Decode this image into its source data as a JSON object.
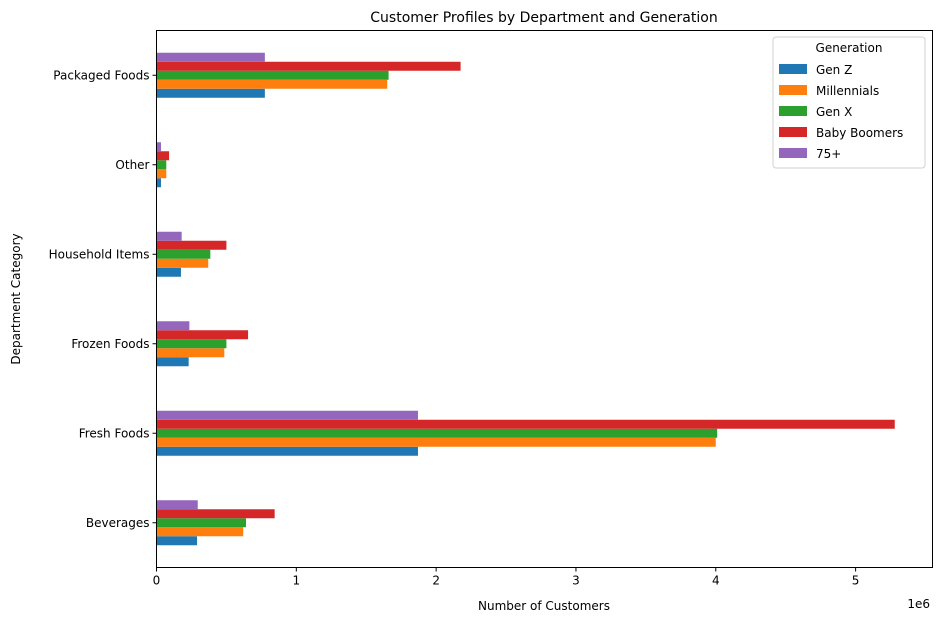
{
  "chart_data": {
    "type": "bar",
    "orientation": "horizontal",
    "title": "Customer Profiles by Department and Generation",
    "xlabel": "Number of Customers",
    "ylabel": "Department Category",
    "x_scale_label": "1e6",
    "xlim": [
      0,
      5550000
    ],
    "xticks": [
      0,
      1000000,
      2000000,
      3000000,
      4000000,
      5000000
    ],
    "xtick_labels": [
      "0",
      "1",
      "2",
      "3",
      "4",
      "5"
    ],
    "categories": [
      "Beverages",
      "Fresh Foods",
      "Frozen Foods",
      "Household Items",
      "Other",
      "Packaged Foods"
    ],
    "legend": {
      "title": "Generation",
      "position": "top-right"
    },
    "grid": false,
    "series": [
      {
        "name": "Gen Z",
        "color": "#1f77b4",
        "values": [
          290000,
          1870000,
          230000,
          175000,
          32000,
          775000
        ]
      },
      {
        "name": "Millennials",
        "color": "#ff7f0e",
        "values": [
          620000,
          4000000,
          485000,
          370000,
          70000,
          1650000
        ]
      },
      {
        "name": "Gen X",
        "color": "#2ca02c",
        "values": [
          640000,
          4010000,
          500000,
          385000,
          70000,
          1660000
        ]
      },
      {
        "name": "Baby Boomers",
        "color": "#d62728",
        "values": [
          845000,
          5280000,
          655000,
          500000,
          90000,
          2175000
        ]
      },
      {
        "name": "75+",
        "color": "#9467bd",
        "values": [
          295000,
          1870000,
          235000,
          180000,
          32000,
          775000
        ]
      }
    ]
  }
}
